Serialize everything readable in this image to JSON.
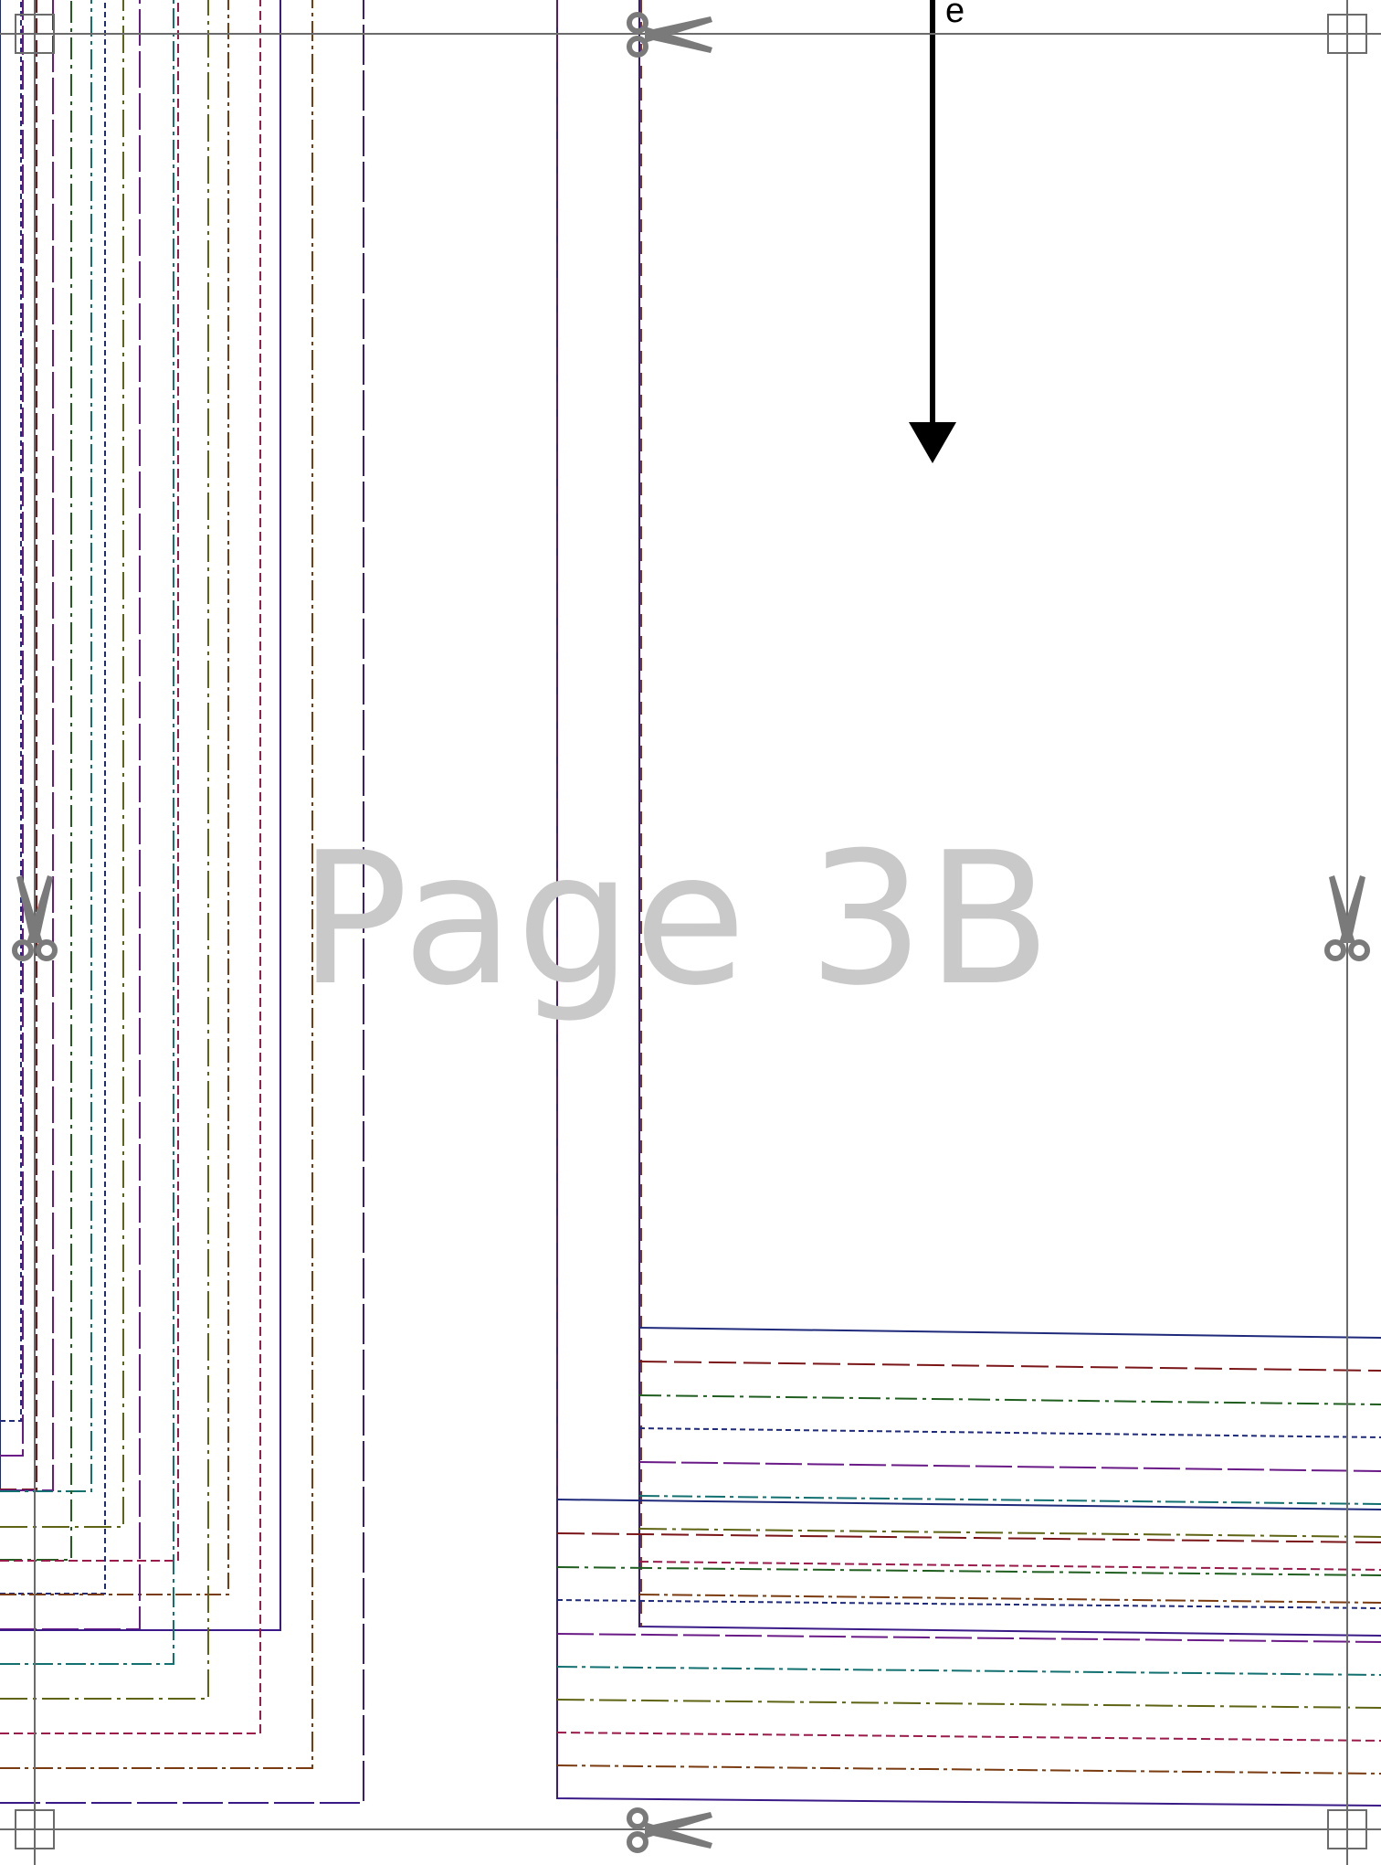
{
  "page_label": "Page 3B",
  "grainline": {
    "label": "e",
    "icon": "arrow-down-icon"
  },
  "colors": {
    "trim_line": "#6b6b6b",
    "scissors": "#7a7a7a",
    "watermark": "#c9c9c9",
    "size_lines": [
      "#1f2a7a",
      "#7a1518",
      "#1f5e1f",
      "#6a1a86",
      "#127070",
      "#5e6414",
      "#9c1a4a",
      "#7a3b10",
      "#3a1a86"
    ]
  },
  "icons": [
    "scissors-icon",
    "registration-square-icon",
    "arrow-down-icon"
  ]
}
